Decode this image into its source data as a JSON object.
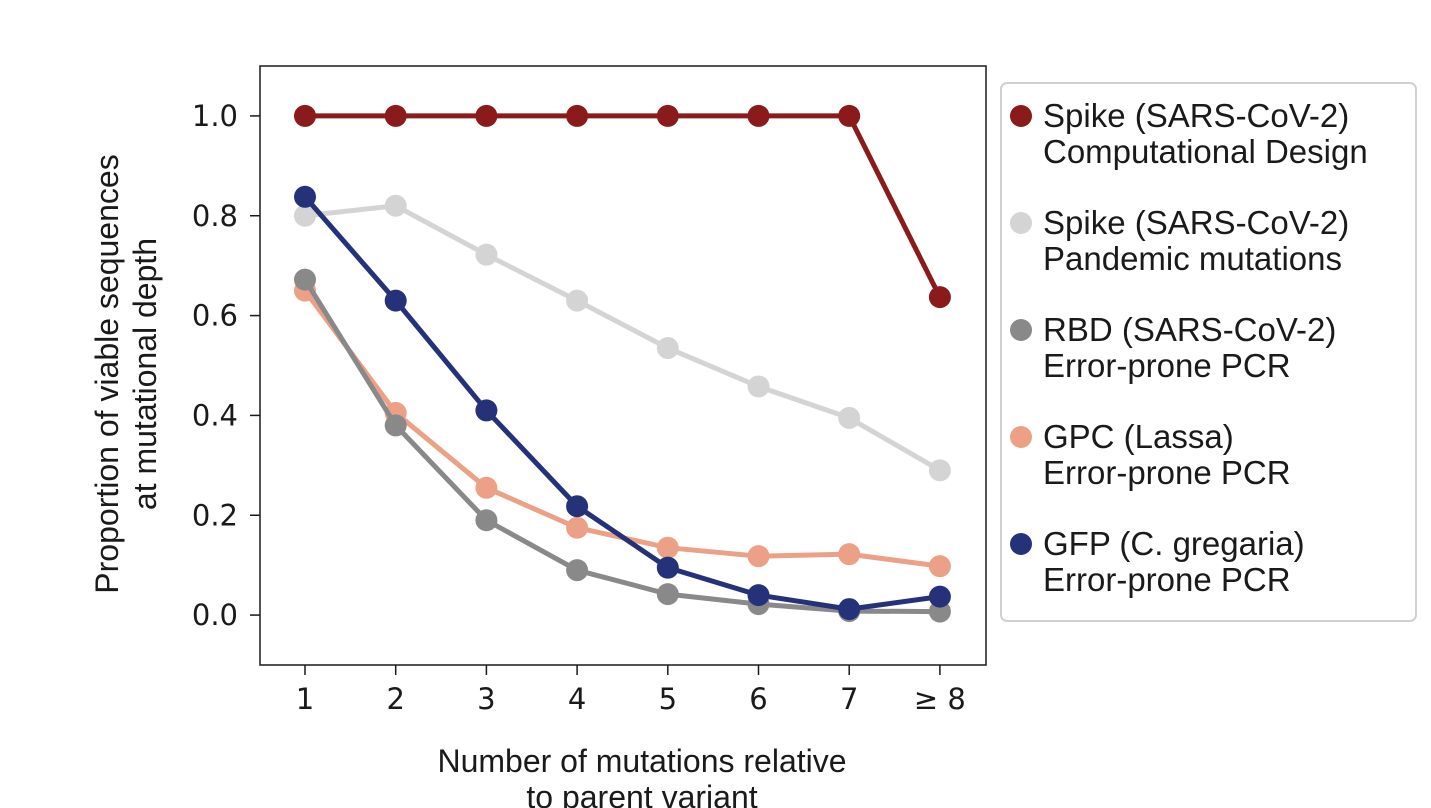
{
  "chart_data": {
    "type": "line",
    "title": "",
    "xlabel": [
      "Number of mutations relative",
      "to parent variant"
    ],
    "ylabel": [
      "Proportion of viable sequences",
      "at mutational depth"
    ],
    "categories": [
      "1",
      "2",
      "3",
      "4",
      "5",
      "6",
      "7",
      "≥ 8"
    ],
    "ylim": [
      -0.1,
      1.1
    ],
    "yticks": [
      0.0,
      0.2,
      0.4,
      0.6,
      0.8,
      1.0
    ],
    "ytick_labels": [
      "0.0",
      "0.2",
      "0.4",
      "0.6",
      "0.8",
      "1.0"
    ],
    "grid": false,
    "legend_position": "right",
    "series": [
      {
        "name": [
          "Spike (SARS-CoV-2)",
          "Computational Design"
        ],
        "color": "#8b1a1a",
        "values": [
          1.0,
          1.0,
          1.0,
          1.0,
          1.0,
          1.0,
          1.0,
          0.637
        ]
      },
      {
        "name": [
          "Spike (SARS-CoV-2)",
          "Pandemic mutations"
        ],
        "color": "#d4d4d4",
        "values": [
          0.8,
          0.82,
          0.722,
          0.63,
          0.535,
          0.458,
          0.395,
          0.29
        ]
      },
      {
        "name": [
          "RBD (SARS-CoV-2)",
          "Error-prone PCR"
        ],
        "color": "#898989",
        "values": [
          0.672,
          0.38,
          0.19,
          0.09,
          0.042,
          0.022,
          0.008,
          0.007
        ]
      },
      {
        "name": [
          "GPC (Lassa)",
          "Error-prone PCR"
        ],
        "color": "#eca187",
        "values": [
          0.65,
          0.405,
          0.255,
          0.175,
          0.135,
          0.118,
          0.122,
          0.098
        ]
      },
      {
        "name": [
          "GFP (C. gregaria)",
          "Error-prone PCR"
        ],
        "color": "#253178",
        "values": [
          0.838,
          0.63,
          0.41,
          0.218,
          0.095,
          0.04,
          0.012,
          0.037
        ]
      }
    ]
  }
}
